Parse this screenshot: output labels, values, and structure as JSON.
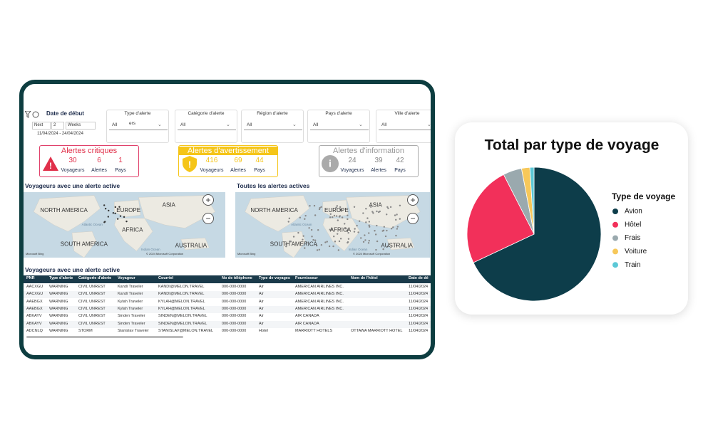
{
  "dashboard": {
    "date_filter": {
      "title": "Date de début",
      "next": "Next",
      "count": "2",
      "unit": "Weeks",
      "range": "11/04/2024 - 24/04/2024"
    },
    "dropdowns": [
      {
        "label": "Type d'alerte",
        "value": "All",
        "overlay": "ers"
      },
      {
        "label": "Catégorie d'alerte",
        "value": "All"
      },
      {
        "label": "Région d'alerte",
        "value": "All"
      },
      {
        "label": "Pays d'alerte",
        "value": "All"
      },
      {
        "label": "Ville d'alerte",
        "value": "All"
      }
    ],
    "kpis": [
      {
        "title": "Alertes critiques",
        "items": [
          {
            "value": 30,
            "label": "Voyageurs"
          },
          {
            "value": 6,
            "label": "Alertes"
          },
          {
            "value": 1,
            "label": "Pays"
          }
        ]
      },
      {
        "title": "Alertes d'avertissement",
        "items": [
          {
            "value": 416,
            "label": "Voyageurs"
          },
          {
            "value": 69,
            "label": "Alertes"
          },
          {
            "value": 44,
            "label": "Pays"
          }
        ]
      },
      {
        "title": "Alertes d'information",
        "items": [
          {
            "value": 24,
            "label": "Voyageurs"
          },
          {
            "value": 39,
            "label": "Alertes"
          },
          {
            "value": 42,
            "label": "Pays"
          }
        ]
      }
    ],
    "maps": [
      {
        "title": "Voyageurs avec une alerte active",
        "labels": [
          "NORTH AMERICA",
          "EUROPE",
          "ASIA",
          "AFRICA",
          "SOUTH AMERICA",
          "AUSTRALIA",
          "Atlantic Ocean",
          "Indian Ocean"
        ],
        "brand": "Microsoft Bing",
        "credit": "© 2024 Microsoft Corporation"
      },
      {
        "title": "Toutes les alertes actives",
        "labels": [
          "NORTH AMERICA",
          "EUROPE",
          "ASIA",
          "AFRICA",
          "SOUTH AMERICA",
          "AUSTRALIA",
          "Atlantic Ocean",
          "Indian Ocean"
        ],
        "brand": "Microsoft Bing",
        "credit": "© 2024 Microsoft Corporation"
      }
    ],
    "table": {
      "title": "Voyageurs avec une alerte active",
      "columns": [
        "PNR",
        "Type d'alerte",
        "Catégorie d'alerte",
        "Voyageur",
        "Courriel",
        "No de téléphone",
        "Type de voyages",
        "Fournisseur",
        "Nom de l'hôtel",
        "Date de dé"
      ],
      "rows": [
        {
          "pnr": "AACXGU",
          "type": "WARNING",
          "category": "CIVIL UNREST",
          "traveler": "Kandi Traveler",
          "email": "KANDI@MELON.TRAVEL",
          "phone": "000-000-0000",
          "trip": "Air",
          "supplier": "AMERICAN AIRLINES INC.",
          "date": "11/04/2024"
        },
        {
          "pnr": "AACXGU",
          "type": "WARNING",
          "category": "CIVIL UNREST",
          "traveler": "Kandi Traveler",
          "email": "KANDI@MELON.TRAVEL",
          "phone": "000-000-0000",
          "trip": "Air",
          "supplier": "AMERICAN AIRLINES INC.",
          "date": "11/04/2024"
        },
        {
          "pnr": "AAEBGX",
          "type": "WARNING",
          "category": "CIVIL UNREST",
          "traveler": "Kylah Traveler",
          "email": "KYLAH@MELON.TRAVEL",
          "phone": "000-000-0000",
          "trip": "Air",
          "supplier": "AMERICAN AIRLINES INC.",
          "date": "11/04/2024"
        },
        {
          "pnr": "AAEBGX",
          "type": "WARNING",
          "category": "CIVIL UNREST",
          "traveler": "Kylah Traveler",
          "email": "KYLAH@MELON.TRAVEL",
          "phone": "000-000-0000",
          "trip": "Air",
          "supplier": "AMERICAN AIRLINES INC.",
          "date": "11/04/2024"
        },
        {
          "pnr": "ABKAYV",
          "type": "WARNING",
          "category": "CIVIL UNREST",
          "traveler": "Sinden Traveler",
          "email": "SINDEN@MELON.TRAVEL",
          "phone": "000-000-0000",
          "trip": "Air",
          "supplier": "AIR CANADA",
          "date": "11/04/2024"
        },
        {
          "pnr": "ABKAYV",
          "type": "WARNING",
          "category": "CIVIL UNREST",
          "traveler": "Sinden Traveler",
          "email": "SINDEN@MELON.TRAVEL",
          "phone": "000-000-0000",
          "trip": "Air",
          "supplier": "AIR CANADA",
          "date": "11/04/2024"
        },
        {
          "pnr": "ADCNLQ",
          "type": "WARNING",
          "category": "STORM",
          "traveler": "Stanislav Traveler",
          "email": "STANISLAV@MELON.TRAVEL",
          "phone": "000-000-0000",
          "trip": "Hotel",
          "supplier": "MARRIOTT HOTELS",
          "hotel": "OTTAWA MARRIOTT HOTEL",
          "date": "11/04/2024"
        }
      ]
    }
  },
  "chart_data": {
    "type": "pie",
    "title": "Total par type de voyage",
    "legend_title": "Type de voyage",
    "categories": [
      "Avion",
      "Hôtel",
      "Frais",
      "Voiture",
      "Train"
    ],
    "values": [
      68,
      24.5,
      4.5,
      2,
      1
    ],
    "colors": [
      "#0d3d4a",
      "#f2305a",
      "#9aa9ae",
      "#f7c85a",
      "#5bc8d6"
    ]
  }
}
